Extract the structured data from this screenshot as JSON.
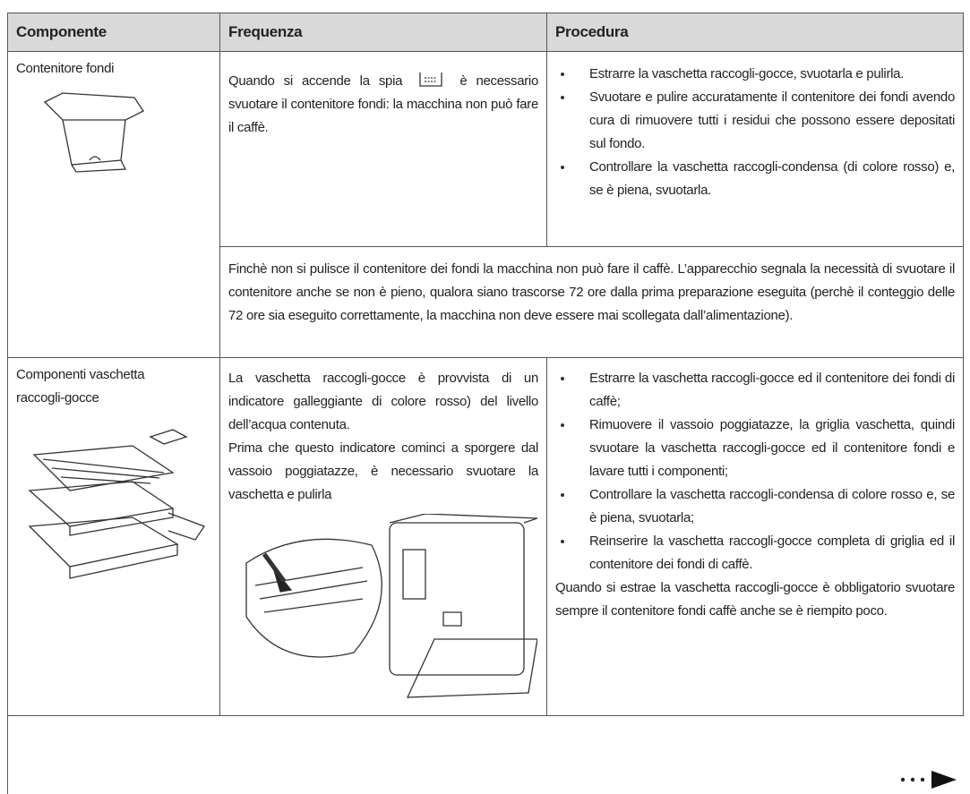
{
  "table": {
    "header": [
      "Componente",
      "Frequenza",
      "Procedura"
    ],
    "rows": [
      {
        "component": "Contenitore fondi",
        "frequency_before_icon": "Quando si accende la spia",
        "frequency_after_icon": "è necessario svuotare il contenitore fondi: la macchina non può fare il caffè.",
        "procedure": [
          "Estrarre la vaschetta raccogli-gocce, svuotarla e pulirla.",
          "Svuotare e pulire accuratamente il contenitore dei fondi avendo cura di rimuovere tutti i residui che possono essere depositati sul fondo.",
          "Controllare la vaschetta raccogli-condensa (di colore rosso) e, se è piena, svuotarla."
        ],
        "note": "Finchè non si pulisce il contenitore dei fondi  la macchina non può fare il caffè. L’apparecchio segnala la necessità di svuotare il contenitore anche se non è pieno, qualora siano trascorse 72 ore dalla prima preparazione eseguita (perchè il conteggio delle 72 ore sia eseguito correttamente, la macchina non deve essere mai scollegata dall’alimentazione)."
      },
      {
        "component": "Componenti vaschetta raccogli-gocce",
        "frequency": [
          "La vaschetta raccogli-gocce è provvista di un indicatore galleggiante di colore rosso) del livello dell’acqua contenuta.",
          "Prima che questo indicatore cominci a sporgere dal vassoio poggiatazze, è necessario svuotare la vaschetta e pulirla"
        ],
        "procedure": [
          "Estrarre la vaschetta raccogli-gocce ed il contenitore dei fondi di caffè;",
          "Rimuovere il vassoio poggiatazze, la griglia vaschetta, quindi svuotare la vaschetta raccogli-gocce ed il contenitore fondi e lavare tutti i componenti;",
          "Controllare la vaschetta raccogli-condensa di colore rosso e, se è piena, svuotarla;",
          "Reinserire la vaschetta raccogli-gocce completa di griglia ed il contenitore dei fondi di caffè."
        ],
        "procedure_note": "Quando si estrae la vaschetta raccogli-gocce è obbligatorio svuotare sempre il contenitore fondi caffè anche se è riempito poco."
      }
    ]
  }
}
